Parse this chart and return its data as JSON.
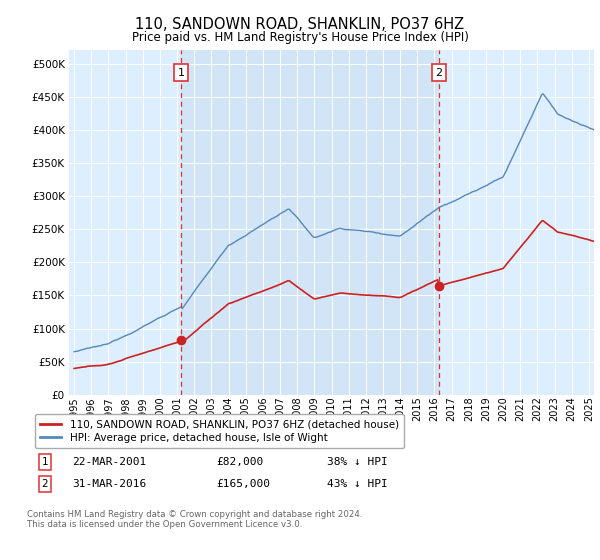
{
  "title": "110, SANDOWN ROAD, SHANKLIN, PO37 6HZ",
  "subtitle": "Price paid vs. HM Land Registry's House Price Index (HPI)",
  "ytick_values": [
    0,
    50000,
    100000,
    150000,
    200000,
    250000,
    300000,
    350000,
    400000,
    450000,
    500000
  ],
  "ylim": [
    0,
    520000
  ],
  "xlim_start": 1994.7,
  "xlim_end": 2025.3,
  "hpi_color": "#5588bb",
  "price_color": "#cc2222",
  "vline_color": "#dd3333",
  "shade_color": "#ddeeff",
  "marker1_year": 2001.22,
  "marker2_year": 2016.25,
  "sale1_price_val": 82000,
  "sale2_price_val": 165000,
  "sale1_label": "22-MAR-2001",
  "sale1_price": "£82,000",
  "sale1_note": "38% ↓ HPI",
  "sale2_label": "31-MAR-2016",
  "sale2_price": "£165,000",
  "sale2_note": "43% ↓ HPI",
  "legend_line1": "110, SANDOWN ROAD, SHANKLIN, PO37 6HZ (detached house)",
  "legend_line2": "HPI: Average price, detached house, Isle of Wight",
  "footer": "Contains HM Land Registry data © Crown copyright and database right 2024.\nThis data is licensed under the Open Government Licence v3.0.",
  "plot_bg_color": "#ddeeff"
}
